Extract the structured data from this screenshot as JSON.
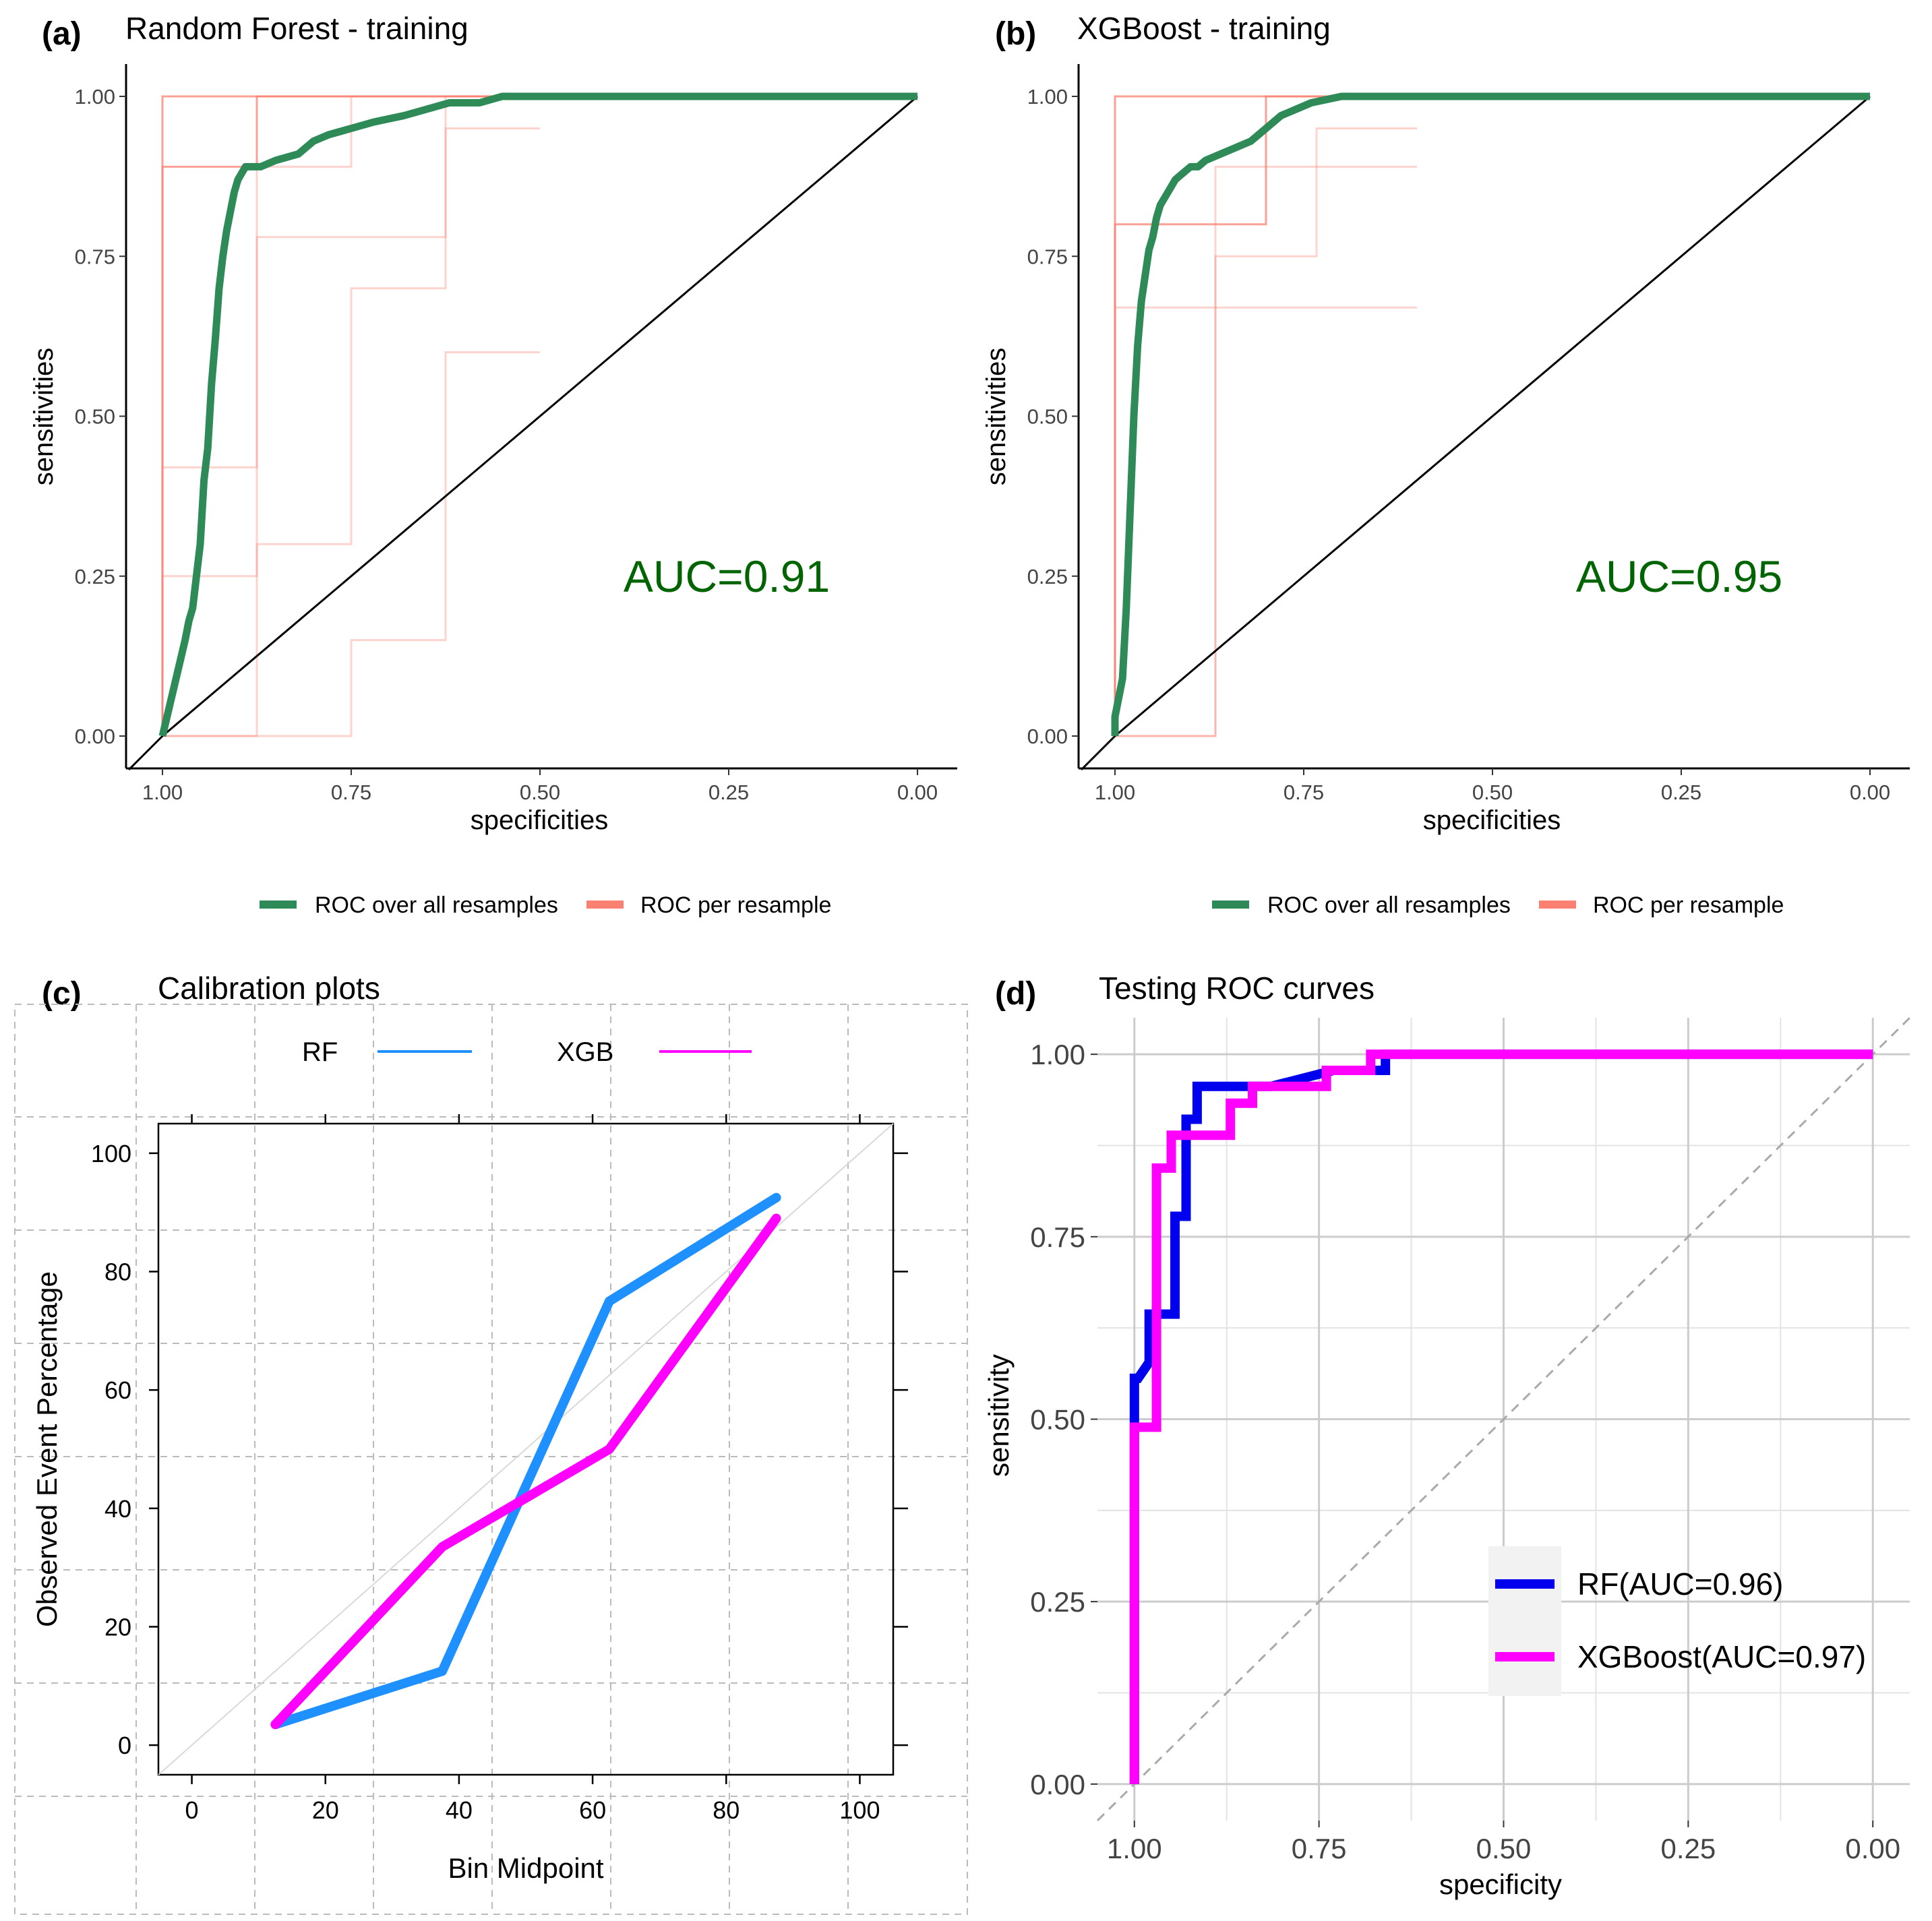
{
  "panels": {
    "a": {
      "letter": "(a)",
      "title": "Random Forest - training",
      "auc": "AUC=0.91"
    },
    "b": {
      "letter": "(b)",
      "title": "XGBoost - training",
      "auc": "AUC=0.95"
    },
    "c": {
      "letter": "(c)",
      "title": "Calibration plots"
    },
    "d": {
      "letter": "(d)",
      "title": "Testing ROC curves"
    }
  },
  "colors": {
    "roc_all": "#2e8b57",
    "roc_resample": "#fa8072",
    "auc_text": "#006400",
    "rf_cal": "#1e90ff",
    "xgb_cal": "#ff00ff",
    "rf_test": "#0000ee",
    "xgb_test": "#ff00ff"
  },
  "chart_data": [
    {
      "id": "a",
      "type": "line",
      "title": "Random Forest - training",
      "xlabel": "specificities",
      "ylabel": "sensitivities",
      "xlim": [
        1.0,
        0.0
      ],
      "ylim": [
        0.0,
        1.0
      ],
      "xticks": [
        "1.00",
        "0.75",
        "0.50",
        "0.25",
        "0.00"
      ],
      "yticks": [
        "0.00",
        "0.25",
        "0.50",
        "0.75",
        "1.00"
      ],
      "legend": [
        "ROC over all resamples",
        "ROC per resample"
      ],
      "annotation": "AUC=0.91",
      "series": [
        {
          "name": "ROC over all resamples",
          "x": [
            1.0,
            0.99,
            0.98,
            0.97,
            0.965,
            0.96,
            0.955,
            0.95,
            0.945,
            0.94,
            0.935,
            0.93,
            0.925,
            0.92,
            0.915,
            0.91,
            0.905,
            0.9,
            0.89,
            0.88,
            0.87,
            0.85,
            0.82,
            0.8,
            0.78,
            0.75,
            0.72,
            0.68,
            0.65,
            0.62,
            0.58,
            0.55,
            0.5,
            0.0
          ],
          "y": [
            0.0,
            0.05,
            0.1,
            0.15,
            0.18,
            0.2,
            0.25,
            0.3,
            0.4,
            0.45,
            0.55,
            0.62,
            0.7,
            0.75,
            0.79,
            0.82,
            0.85,
            0.87,
            0.89,
            0.89,
            0.89,
            0.9,
            0.91,
            0.93,
            0.94,
            0.95,
            0.96,
            0.97,
            0.98,
            0.99,
            0.99,
            1.0,
            1.0,
            1.0
          ]
        },
        {
          "name": "ROC per resample",
          "x": [
            1.0,
            1.0,
            0.875,
            0.875,
            0.5
          ],
          "y": [
            0.0,
            0.89,
            0.89,
            1.0,
            1.0
          ]
        },
        {
          "name": "ROC per resample",
          "x": [
            1.0,
            1.0,
            0.5
          ],
          "y": [
            0.0,
            1.0,
            1.0
          ]
        },
        {
          "name": "ROC per resample",
          "x": [
            1.0,
            1.0,
            0.875,
            0.875,
            0.75,
            0.75,
            0.5
          ],
          "y": [
            0.0,
            0.42,
            0.42,
            0.89,
            0.89,
            1.0,
            1.0
          ]
        },
        {
          "name": "ROC per resample",
          "x": [
            1.0,
            1.0,
            0.875,
            0.875,
            0.625,
            0.625,
            0.5
          ],
          "y": [
            0.0,
            0.25,
            0.25,
            0.78,
            0.78,
            1.0,
            1.0
          ]
        },
        {
          "name": "ROC per resample",
          "x": [
            1.0,
            0.875,
            0.875,
            0.75,
            0.75,
            0.625,
            0.625,
            0.5
          ],
          "y": [
            0.0,
            0.0,
            0.3,
            0.3,
            0.7,
            0.7,
            0.95,
            0.95
          ]
        },
        {
          "name": "ROC per resample",
          "x": [
            1.0,
            0.75,
            0.75,
            0.625,
            0.625,
            0.5
          ],
          "y": [
            0.0,
            0.0,
            0.15,
            0.15,
            0.6,
            0.6
          ]
        }
      ]
    },
    {
      "id": "b",
      "type": "line",
      "title": "XGBoost - training",
      "xlabel": "specificities",
      "ylabel": "sensitivities",
      "xlim": [
        1.0,
        0.0
      ],
      "ylim": [
        0.0,
        1.0
      ],
      "xticks": [
        "1.00",
        "0.75",
        "0.50",
        "0.25",
        "0.00"
      ],
      "yticks": [
        "0.00",
        "0.25",
        "0.50",
        "0.75",
        "1.00"
      ],
      "legend": [
        "ROC over all resamples",
        "ROC per resample"
      ],
      "annotation": "AUC=0.95",
      "series": [
        {
          "name": "ROC over all resamples",
          "x": [
            1.0,
            1.0,
            0.995,
            0.99,
            0.985,
            0.98,
            0.975,
            0.97,
            0.965,
            0.96,
            0.955,
            0.95,
            0.945,
            0.94,
            0.93,
            0.92,
            0.91,
            0.9,
            0.89,
            0.88,
            0.86,
            0.84,
            0.82,
            0.8,
            0.78,
            0.76,
            0.74,
            0.7,
            0.65,
            0.0
          ],
          "y": [
            0.0,
            0.03,
            0.06,
            0.09,
            0.2,
            0.35,
            0.5,
            0.61,
            0.68,
            0.72,
            0.76,
            0.78,
            0.81,
            0.83,
            0.85,
            0.87,
            0.88,
            0.89,
            0.89,
            0.9,
            0.91,
            0.92,
            0.93,
            0.95,
            0.97,
            0.98,
            0.99,
            1.0,
            1.0,
            1.0
          ]
        },
        {
          "name": "ROC per resample",
          "x": [
            1.0,
            1.0,
            0.8,
            0.8,
            0.6
          ],
          "y": [
            0.0,
            0.8,
            0.8,
            1.0,
            1.0
          ]
        },
        {
          "name": "ROC per resample",
          "x": [
            1.0,
            1.0,
            0.6
          ],
          "y": [
            0.0,
            1.0,
            1.0
          ]
        },
        {
          "name": "ROC per resample",
          "x": [
            1.0,
            1.0,
            0.867,
            0.867,
            0.6
          ],
          "y": [
            0.0,
            0.67,
            0.67,
            0.89,
            0.89
          ]
        },
        {
          "name": "ROC per resample",
          "x": [
            1.0,
            0.867,
            0.867,
            0.733,
            0.733,
            0.6
          ],
          "y": [
            0.0,
            0.0,
            0.75,
            0.75,
            0.95,
            0.95
          ]
        },
        {
          "name": "ROC per resample",
          "x": [
            1.0,
            0.867,
            0.867,
            0.6
          ],
          "y": [
            0.0,
            0.0,
            0.67,
            0.67
          ]
        }
      ]
    },
    {
      "id": "c",
      "type": "line",
      "title": "Calibration plots",
      "xlabel": "Bin Midpoint",
      "ylabel": "Observed Event Percentage",
      "xlim": [
        -5,
        105
      ],
      "ylim": [
        -5,
        105
      ],
      "xticks": [
        "0",
        "20",
        "40",
        "60",
        "80",
        "100"
      ],
      "yticks": [
        "0",
        "20",
        "40",
        "60",
        "80",
        "100"
      ],
      "legend": [
        "RF",
        "XGB"
      ],
      "series": [
        {
          "name": "RF",
          "x": [
            12.5,
            37.5,
            62.5,
            87.5
          ],
          "y": [
            3.5,
            12.5,
            75,
            92.5
          ]
        },
        {
          "name": "XGB",
          "x": [
            12.5,
            37.5,
            62.5,
            87.5
          ],
          "y": [
            3.5,
            33.5,
            50,
            89
          ]
        }
      ]
    },
    {
      "id": "d",
      "type": "line",
      "title": "Testing ROC curves",
      "xlabel": "specificity",
      "ylabel": "sensitivity",
      "xlim": [
        1.05,
        -0.05
      ],
      "ylim": [
        -0.05,
        1.05
      ],
      "xticks": [
        "1.00",
        "0.75",
        "0.50",
        "0.25",
        "0.00"
      ],
      "yticks": [
        "0.00",
        "0.25",
        "0.50",
        "0.75",
        "1.00"
      ],
      "legend": [
        "RF(AUC=0.96)",
        "XGBoost(AUC=0.97)"
      ],
      "series": [
        {
          "name": "RF(AUC=0.96)",
          "x": [
            1.0,
            1.0,
            0.995,
            0.98,
            0.98,
            0.945,
            0.945,
            0.93,
            0.93,
            0.915,
            0.915,
            0.89,
            0.89,
            0.83,
            0.83,
            0.815,
            0.815,
            0.73,
            0.73,
            0.66,
            0.66,
            0.0
          ],
          "y": [
            0.0,
            0.556,
            0.556,
            0.578,
            0.644,
            0.644,
            0.778,
            0.778,
            0.911,
            0.911,
            0.956,
            0.956,
            0.956,
            0.956,
            0.956,
            0.956,
            0.956,
            0.978,
            0.978,
            0.978,
            1.0,
            1.0
          ]
        },
        {
          "name": "XGBoost(AUC=0.97)",
          "x": [
            1.0,
            1.0,
            0.97,
            0.97,
            0.95,
            0.95,
            0.87,
            0.87,
            0.84,
            0.84,
            0.74,
            0.74,
            0.68,
            0.68,
            0.0
          ],
          "y": [
            0.0,
            0.489,
            0.489,
            0.844,
            0.844,
            0.889,
            0.889,
            0.933,
            0.933,
            0.956,
            0.956,
            0.978,
            0.978,
            1.0,
            1.0
          ]
        }
      ]
    }
  ]
}
